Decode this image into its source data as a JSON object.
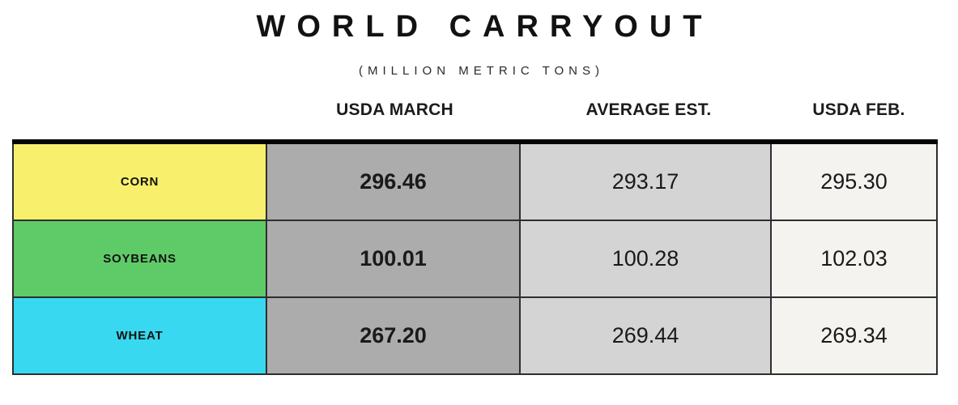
{
  "title": "WORLD CARRYOUT",
  "subtitle": "(MILLION METRIC TONS)",
  "table": {
    "columns": [
      "USDA MARCH",
      "AVERAGE EST.",
      "USDA FEB."
    ],
    "rows": [
      {
        "commodity": "CORN",
        "values": [
          "296.46",
          "293.17",
          "295.30"
        ]
      },
      {
        "commodity": "SOYBEANS",
        "values": [
          "100.01",
          "100.28",
          "102.03"
        ]
      },
      {
        "commodity": "WHEAT",
        "values": [
          "267.20",
          "269.44",
          "269.34"
        ]
      }
    ]
  },
  "colors": {
    "corn_row": "#F8EF6D",
    "soybeans_row": "#5FCB68",
    "wheat_row": "#38D9F0",
    "usda_march_col": "#ACACAC",
    "average_est_col": "#D4D4D4",
    "usda_feb_col": "#F5F3F0",
    "border": "#1F1F1F",
    "top_border": "#050505"
  },
  "chart_data": {
    "type": "table",
    "title": "WORLD CARRYOUT",
    "subtitle": "(MILLION METRIC TONS)",
    "columns": [
      "USDA MARCH",
      "AVERAGE EST.",
      "USDA FEB."
    ],
    "rows": [
      {
        "label": "CORN",
        "values": [
          296.46,
          293.17,
          295.3
        ]
      },
      {
        "label": "SOYBEANS",
        "values": [
          100.01,
          100.28,
          102.03
        ]
      },
      {
        "label": "WHEAT",
        "values": [
          267.2,
          269.44,
          269.34
        ]
      }
    ]
  }
}
